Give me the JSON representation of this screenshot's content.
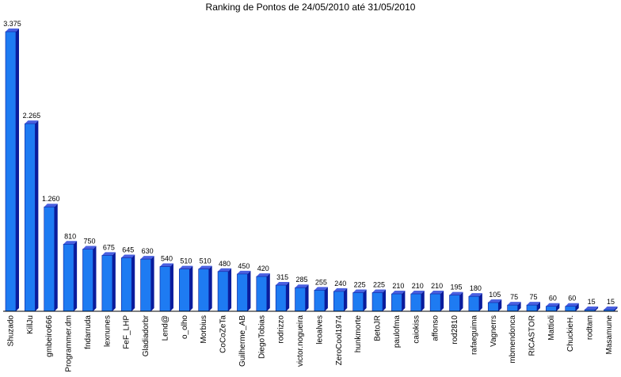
{
  "chart_data": {
    "type": "bar",
    "title": "Ranking de Pontos de 24/05/2010 até 31/05/2010",
    "xlabel": "",
    "ylabel": "",
    "ylim": [
      0,
      3375
    ],
    "grid": false,
    "legend": "none",
    "categories": [
      "Shuzado",
      "KillJu",
      "gmbeiro666",
      "Programmer.dm",
      "fndarruda",
      "lexnunes",
      "FeF_LHP",
      "Gladiadorbr",
      "Lend@",
      "o_olho",
      "Morbius",
      "CoCoZeTa",
      "Guilherme_AB",
      "DiegoTobias",
      "rodrizzo",
      "victor.nogueira",
      "leoalves",
      "ZeroCool1974",
      "hunkmorte",
      "BetoJR",
      "paulofma",
      "caiokiss",
      "affonso",
      "rod2810",
      "rafaeguima",
      "Vagnerrs",
      "mbmendonca",
      "RICASTOR",
      "Mattioli",
      "ChuckieH.",
      "rodtam",
      "Masamune"
    ],
    "values": [
      3375,
      2265,
      1260,
      810,
      750,
      675,
      645,
      630,
      540,
      510,
      510,
      480,
      450,
      420,
      315,
      285,
      255,
      240,
      225,
      225,
      210,
      210,
      210,
      195,
      180,
      105,
      75,
      75,
      60,
      60,
      15,
      15
    ],
    "value_labels": [
      "3.375",
      "2.265",
      "1.260",
      "810",
      "750",
      "675",
      "645",
      "630",
      "540",
      "510",
      "510",
      "480",
      "450",
      "420",
      "315",
      "285",
      "255",
      "240",
      "225",
      "225",
      "210",
      "210",
      "210",
      "195",
      "180",
      "105",
      "75",
      "75",
      "60",
      "60",
      "15",
      "15"
    ],
    "colors": {
      "bar_front": "#1E7BF2",
      "bar_side": "#0A1C9C",
      "bar_top": "#4A60E0",
      "axis": "#000000"
    }
  }
}
